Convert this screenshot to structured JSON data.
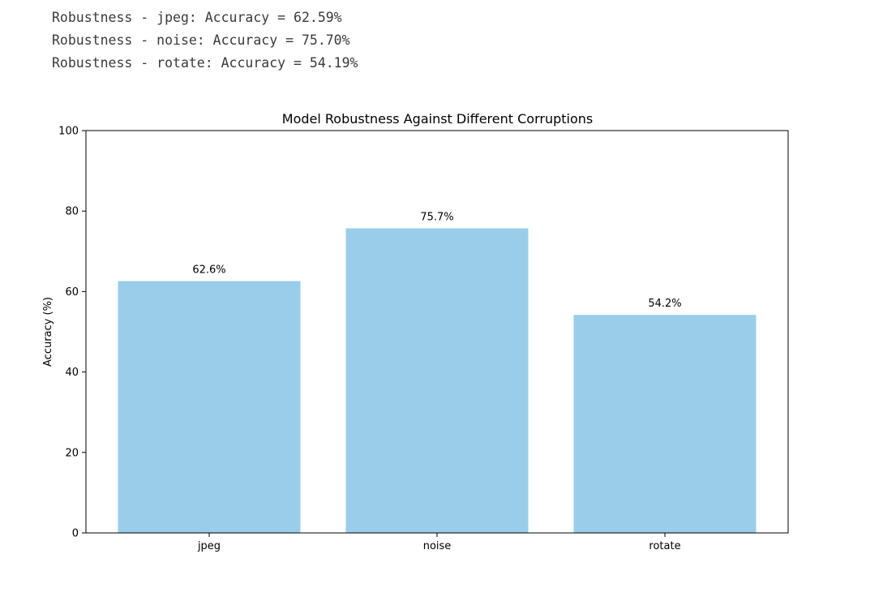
{
  "output": {
    "lines": [
      "Robustness - jpeg: Accuracy = 62.59%",
      "Robustness - noise: Accuracy = 75.70%",
      "Robustness - rotate: Accuracy = 54.19%"
    ]
  },
  "chart_data": {
    "type": "bar",
    "title": "Model Robustness Against Different Corruptions",
    "xlabel": "",
    "ylabel": "Accuracy (%)",
    "categories": [
      "jpeg",
      "noise",
      "rotate"
    ],
    "values": [
      62.59,
      75.7,
      54.19
    ],
    "data_labels": [
      "62.6%",
      "75.7%",
      "54.2%"
    ],
    "ylim": [
      0,
      100
    ],
    "yticks": [
      0,
      20,
      40,
      60,
      80,
      100
    ],
    "grid": false,
    "bar_color": "#99cdea"
  }
}
